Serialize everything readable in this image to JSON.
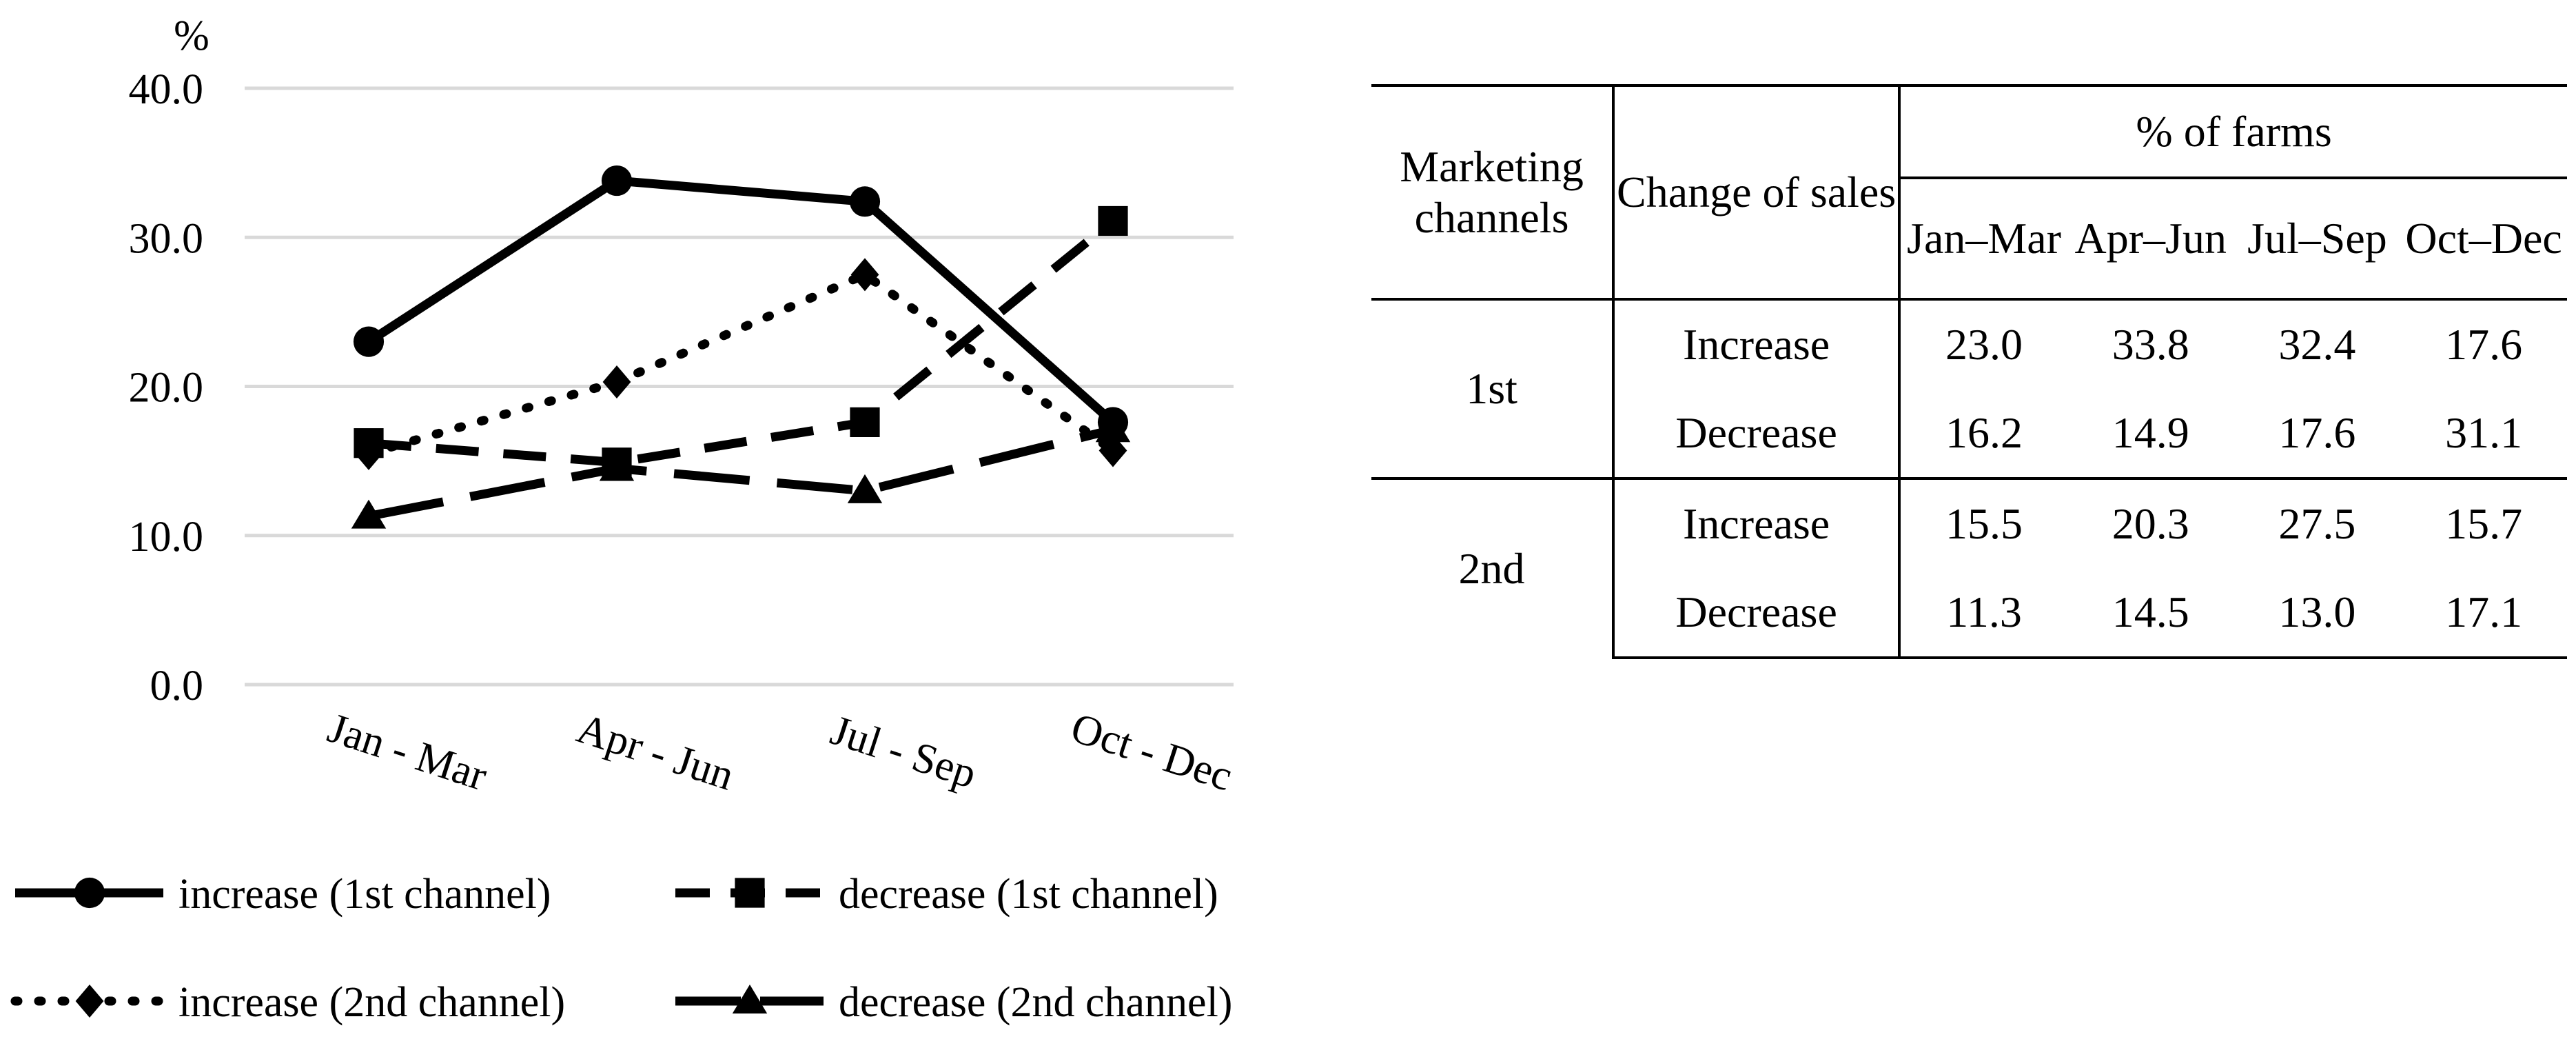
{
  "chart_data": {
    "type": "line",
    "ylabel": "%",
    "ylim": [
      0,
      40
    ],
    "yticks": [
      "0.0",
      "10.0",
      "20.0",
      "30.0",
      "40.0"
    ],
    "yticks_values": [
      0,
      10,
      20,
      30,
      40
    ],
    "categories": [
      "Jan - Mar",
      "Apr - Jun",
      "Jul - Sep",
      "Oct - Dec"
    ],
    "grid": true,
    "legend_position": "bottom",
    "series": [
      {
        "name": "increase (1st channel)",
        "values": [
          23.0,
          33.8,
          32.4,
          17.6
        ],
        "marker": "circle",
        "dash": "solid",
        "color": "#000000"
      },
      {
        "name": "decrease (1st channel)",
        "values": [
          16.2,
          14.9,
          17.6,
          31.1
        ],
        "marker": "square",
        "dash": "dash",
        "color": "#000000"
      },
      {
        "name": "increase (2nd channel)",
        "values": [
          15.5,
          20.3,
          27.5,
          15.7
        ],
        "marker": "diamond",
        "dash": "dot",
        "color": "#000000"
      },
      {
        "name": "decrease (2nd channel)",
        "values": [
          11.3,
          14.5,
          13.0,
          17.1
        ],
        "marker": "triangle",
        "dash": "longdash",
        "color": "#000000"
      }
    ]
  },
  "table": {
    "col1_header": "Marketing channels",
    "col2_header": "Change of sales",
    "group_header": "% of farms",
    "quarters": [
      "Jan–Mar",
      "Apr–Jun",
      "Jul–Sep",
      "Oct–Dec"
    ],
    "groups": [
      {
        "channel": "1st",
        "rows": [
          {
            "change": "Increase",
            "values": [
              "23.0",
              "33.8",
              "32.4",
              "17.6"
            ]
          },
          {
            "change": "Decrease",
            "values": [
              "16.2",
              "14.9",
              "17.6",
              "31.1"
            ]
          }
        ]
      },
      {
        "channel": "2nd",
        "rows": [
          {
            "change": "Increase",
            "values": [
              "15.5",
              "20.3",
              "27.5",
              "15.7"
            ]
          },
          {
            "change": "Decrease",
            "values": [
              "11.3",
              "14.5",
              "13.0",
              "17.1"
            ]
          }
        ]
      }
    ]
  }
}
